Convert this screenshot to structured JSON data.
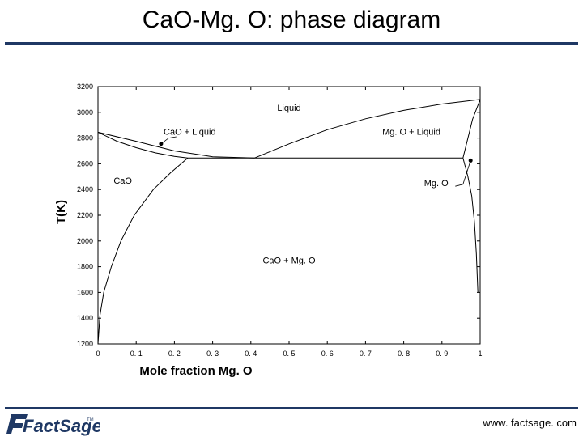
{
  "slide": {
    "title": "CaO-Mg. O:  phase diagram",
    "footer_url": "www. factsage. com",
    "rule_color": "#1f3864",
    "logo": {
      "icon": "factsage-logo",
      "text": "FactSage",
      "tm": "TM",
      "color": "#1f3864"
    }
  },
  "chart_data": {
    "type": "line",
    "title": "",
    "xlabel": "Mole fraction Mg. O",
    "ylabel": "T(K)",
    "xlim": [
      0,
      1
    ],
    "ylim": [
      1200,
      3200
    ],
    "x_ticks": [
      0,
      0.1,
      0.2,
      0.3,
      0.4,
      0.5,
      0.6,
      0.7,
      0.8,
      0.9,
      1
    ],
    "x_tick_labels": [
      "0",
      "0. 1",
      "0. 2",
      "0. 3",
      "0. 4",
      "0. 5",
      "0. 6",
      "0. 7",
      "0. 8",
      "0. 9",
      "1"
    ],
    "y_ticks": [
      1200,
      1400,
      1600,
      1800,
      2000,
      2200,
      2400,
      2600,
      2800,
      3000,
      3200
    ],
    "grid": false,
    "series": [
      {
        "id": "liquidus-cao",
        "points": [
          [
            0,
            2845
          ],
          [
            0.1,
            2775
          ],
          [
            0.2,
            2700
          ],
          [
            0.3,
            2655
          ],
          [
            0.41,
            2645
          ]
        ]
      },
      {
        "id": "solidus-cao-liquid",
        "points": [
          [
            0,
            2845
          ],
          [
            0.05,
            2775
          ],
          [
            0.1,
            2725
          ],
          [
            0.15,
            2685
          ],
          [
            0.2,
            2658
          ],
          [
            0.235,
            2645
          ]
        ]
      },
      {
        "id": "liquidus-mgo",
        "points": [
          [
            0.41,
            2645
          ],
          [
            0.5,
            2755
          ],
          [
            0.6,
            2865
          ],
          [
            0.7,
            2950
          ],
          [
            0.8,
            3015
          ],
          [
            0.9,
            3065
          ],
          [
            1,
            3100
          ]
        ]
      },
      {
        "id": "eutectic-line",
        "points": [
          [
            0.235,
            2645
          ],
          [
            0.955,
            2645
          ]
        ]
      },
      {
        "id": "solvus-cao",
        "points": [
          [
            0,
            1200
          ],
          [
            0.005,
            1420
          ],
          [
            0.015,
            1600
          ],
          [
            0.035,
            1800
          ],
          [
            0.06,
            2000
          ],
          [
            0.095,
            2200
          ],
          [
            0.145,
            2400
          ],
          [
            0.19,
            2530
          ],
          [
            0.235,
            2645
          ]
        ]
      },
      {
        "id": "solidus-mgo-liquid",
        "points": [
          [
            0.955,
            2645
          ],
          [
            0.968,
            2800
          ],
          [
            0.98,
            2945
          ],
          [
            1,
            3100
          ]
        ]
      },
      {
        "id": "solvus-mgo",
        "points": [
          [
            0.955,
            2645
          ],
          [
            0.968,
            2500
          ],
          [
            0.978,
            2350
          ],
          [
            0.985,
            2150
          ],
          [
            0.99,
            1900
          ],
          [
            0.994,
            1600
          ]
        ]
      }
    ],
    "points": [
      {
        "id": "dot-cao-liquid",
        "x": 0.165,
        "y": 2755
      },
      {
        "id": "dot-mgo",
        "x": 0.975,
        "y": 2625
      }
    ],
    "annotations": [
      {
        "id": "label-liquid",
        "text": "Liquid",
        "x": 0.5,
        "y": 3010
      },
      {
        "id": "label-cao-liquid",
        "text": "CaO + Liquid",
        "x": 0.24,
        "y": 2825
      },
      {
        "id": "label-mgo-liquid",
        "text": "Mg. O + Liquid",
        "x": 0.82,
        "y": 2825
      },
      {
        "id": "label-cao",
        "text": "CaO",
        "x": 0.065,
        "y": 2445
      },
      {
        "id": "label-mgo",
        "text": "Mg. O",
        "x": 0.885,
        "y": 2425
      },
      {
        "id": "label-cao-mgo",
        "text": "CaO + Mg. O",
        "x": 0.5,
        "y": 1825
      }
    ],
    "leaders": [
      {
        "id": "leader-cao-liquid",
        "points": [
          [
            0.165,
            2755
          ],
          [
            0.185,
            2800
          ],
          [
            0.205,
            2810
          ]
        ]
      },
      {
        "id": "leader-mgo",
        "points": [
          [
            0.975,
            2625
          ],
          [
            0.955,
            2440
          ],
          [
            0.935,
            2425
          ]
        ]
      }
    ]
  }
}
